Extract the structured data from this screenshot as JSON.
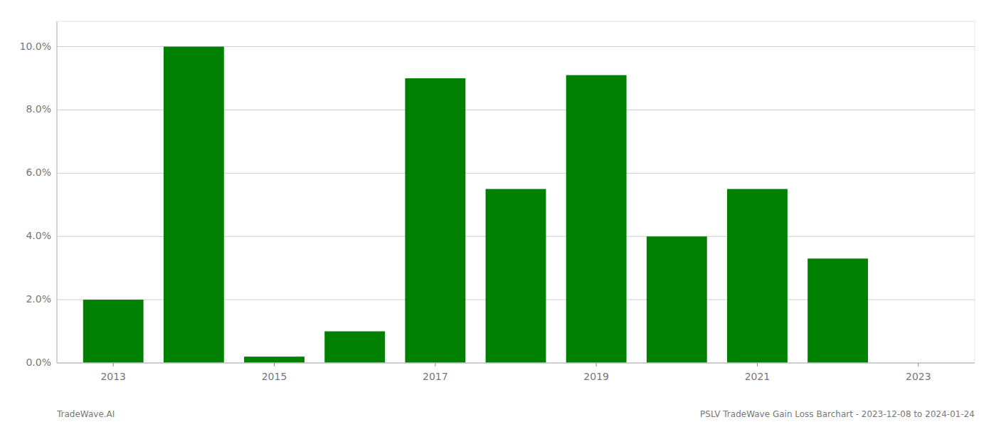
{
  "chart_data": {
    "type": "bar",
    "x": [
      2013,
      2014,
      2015,
      2016,
      2017,
      2018,
      2019,
      2020,
      2021,
      2022
    ],
    "values": [
      0.02,
      0.1,
      0.002,
      0.01,
      0.09,
      0.055,
      0.091,
      0.04,
      0.055,
      0.033
    ],
    "color": "#008000",
    "xlim": [
      2012.3,
      2023.7
    ],
    "xticks": [
      2013,
      2015,
      2017,
      2019,
      2021,
      2023
    ],
    "ylim": [
      0,
      0.108
    ],
    "yticks": [
      {
        "value": 0.0,
        "label": "0.0%"
      },
      {
        "value": 0.02,
        "label": "2.0%"
      },
      {
        "value": 0.04,
        "label": "4.0%"
      },
      {
        "value": 0.06,
        "label": "6.0%"
      },
      {
        "value": 0.08,
        "label": "8.0%"
      },
      {
        "value": 0.1,
        "label": "10.0%"
      }
    ],
    "grid": true,
    "annotations": [
      "TradeWave.AI",
      "PSLV TradeWave Gain Loss Barchart - 2023-12-08 to 2024-01-24"
    ]
  }
}
